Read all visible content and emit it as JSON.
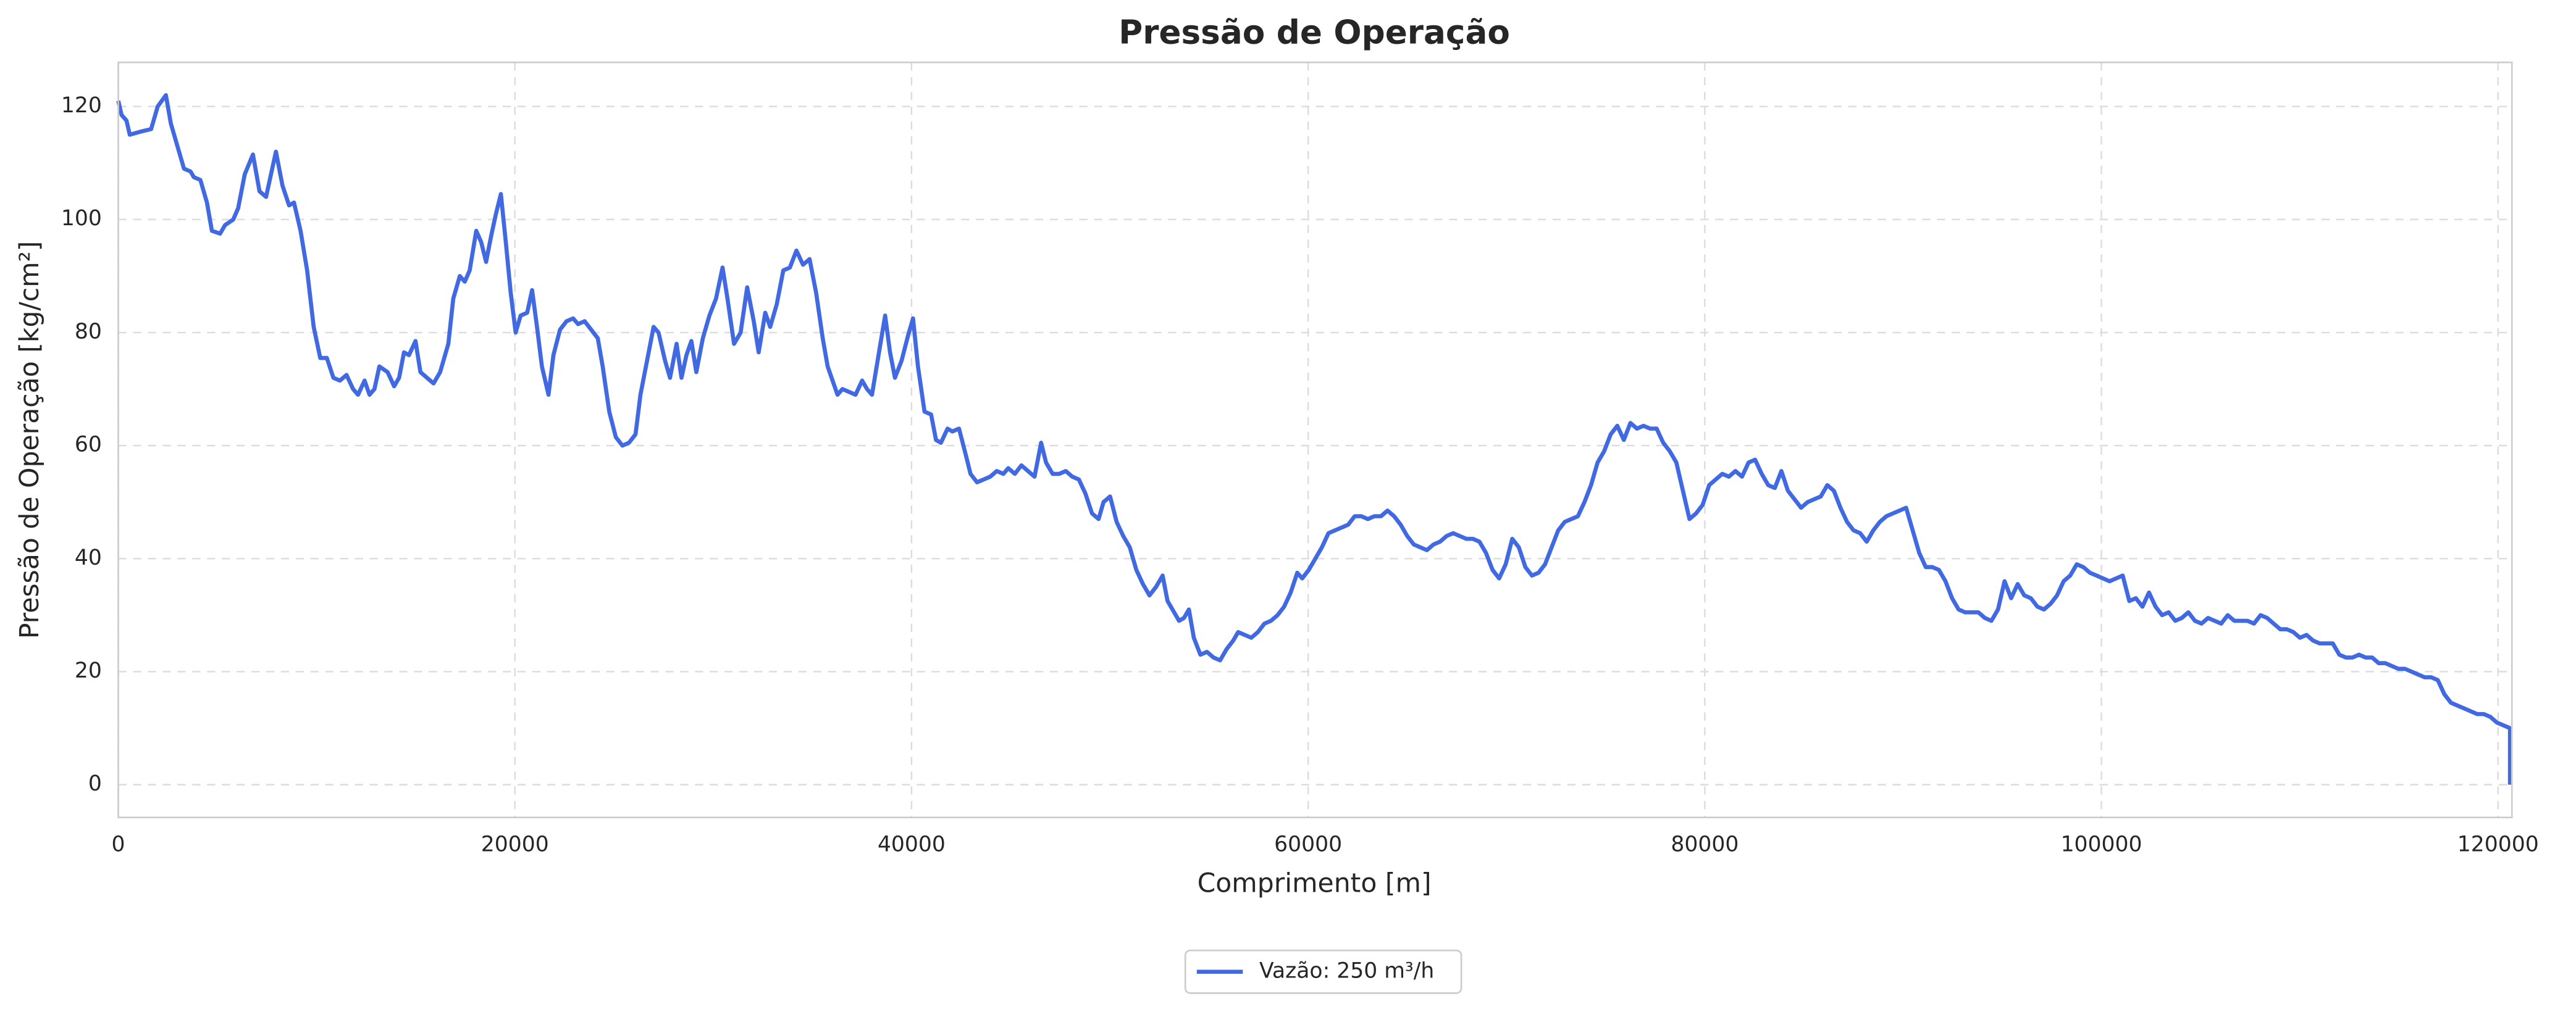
{
  "chart_data": {
    "type": "line",
    "title": "Pressão de Operação",
    "x_label": "Comprimento [m]",
    "y_label": "Pressão de Operação [kg/cm²]",
    "xlim": [
      0,
      120700
    ],
    "ylim": [
      -5.8,
      127.8
    ],
    "xticks": [
      0,
      20000,
      40000,
      60000,
      80000,
      100000,
      120000
    ],
    "yticks": [
      0,
      20,
      40,
      60,
      80,
      100,
      120
    ],
    "grid": true,
    "legend": "lower center",
    "x": [
      0,
      166,
      414,
      580,
      1076,
      1656,
      1987,
      2401,
      2650,
      2981,
      3312,
      3643,
      3809,
      4140,
      4471,
      4720,
      5134,
      5382,
      5796,
      6044,
      6376,
      6790,
      7121,
      7452,
      7700,
      7949,
      8280,
      8611,
      8860,
      9191,
      9522,
      9853,
      10184,
      10516,
      10847,
      11178,
      11509,
      11840,
      12089,
      12420,
      12668,
      12917,
      13165,
      13579,
      13910,
      14159,
      14407,
      14656,
      14987,
      15235,
      15566,
      15898,
      16229,
      16643,
      16891,
      17222,
      17471,
      17719,
      18050,
      18299,
      18547,
      18796,
      19044,
      19292,
      19541,
      19789,
      20038,
      20286,
      20617,
      20866,
      21114,
      21362,
      21694,
      21942,
      22273,
      22604,
      22936,
      23184,
      23515,
      23846,
      24178,
      24426,
      24757,
      25088,
      25420,
      25751,
      26082,
      26330,
      26662,
      26993,
      27241,
      27572,
      27821,
      28152,
      28400,
      28649,
      28897,
      29146,
      29477,
      29808,
      30139,
      30470,
      30719,
      31050,
      31381,
      31712,
      32044,
      32292,
      32623,
      32872,
      33203,
      33534,
      33865,
      34196,
      34528,
      34859,
      35190,
      35521,
      35770,
      36018,
      36266,
      36515,
      36846,
      37177,
      37508,
      37757,
      38005,
      38336,
      38668,
      38916,
      39164,
      39496,
      39827,
      40075,
      40324,
      40655,
      40986,
      41234,
      41483,
      41814,
      42062,
      42394,
      42725,
      42973,
      43304,
      43636,
      43967,
      44298,
      44629,
      44878,
      45209,
      45540,
      45871,
      46202,
      46534,
      46782,
      47113,
      47444,
      47776,
      48107,
      48438,
      48769,
      49100,
      49432,
      49680,
      50011,
      50342,
      50674,
      51005,
      51336,
      51667,
      51998,
      52330,
      52661,
      52909,
      53158,
      53489,
      53737,
      53986,
      54234,
      54565,
      54896,
      55228,
      55559,
      55890,
      56221,
      56470,
      56801,
      57132,
      57463,
      57794,
      58126,
      58457,
      58788,
      59119,
      59450,
      59699,
      60030,
      60361,
      60692,
      61023,
      61354,
      61685,
      62016,
      62347,
      62678,
      63009,
      63340,
      63671,
      64002,
      64333,
      64664,
      64995,
      65326,
      65657,
      65988,
      66319,
      66650,
      66981,
      67312,
      67643,
      67974,
      68305,
      68636,
      68967,
      69298,
      69629,
      69960,
      70291,
      70622,
      70953,
      71284,
      71615,
      71946,
      72277,
      72608,
      72939,
      73270,
      73601,
      73932,
      74263,
      74594,
      74925,
      75256,
      75587,
      75918,
      76249,
      76580,
      76911,
      77242,
      77573,
      77904,
      78235,
      78566,
      78897,
      79228,
      79559,
      79890,
      80221,
      80552,
      80883,
      81214,
      81545,
      81876,
      82207,
      82538,
      82869,
      83200,
      83531,
      83862,
      84193,
      84524,
      84855,
      85186,
      85517,
      85848,
      86179,
      86510,
      86841,
      87172,
      87503,
      87834,
      88165,
      88496,
      88827,
      89158,
      89489,
      89820,
      90151,
      90482,
      90813,
      91144,
      91475,
      91806,
      92137,
      92468,
      92799,
      93130,
      93461,
      93792,
      94123,
      94454,
      94785,
      95116,
      95447,
      95778,
      96109,
      96440,
      96771,
      97102,
      97433,
      97764,
      98095,
      98426,
      98757,
      99088,
      99419,
      99750,
      100081,
      100412,
      100743,
      101074,
      101405,
      101736,
      102067,
      102398,
      102729,
      103060,
      103391,
      103722,
      104053,
      104384,
      104715,
      105046,
      105377,
      105708,
      106039,
      106370,
      106701,
      107032,
      107363,
      107694,
      108025,
      108356,
      108687,
      109018,
      109349,
      109680,
      110011,
      110342,
      110673,
      111004,
      111335,
      111666,
      111997,
      112328,
      112659,
      112990,
      113321,
      113652,
      113983,
      114314,
      114645,
      114976,
      115307,
      115638,
      115969,
      116300,
      116631,
      116962,
      117293,
      117624,
      117955,
      118286,
      118617,
      118948,
      119279,
      119610,
      119941,
      120272,
      120603,
      120603
    ],
    "series": [
      {
        "name": "Vazão: 250 m³/h",
        "color": "#4169e1",
        "values": [
          121,
          118.5,
          117.5,
          115,
          115.5,
          116,
          120,
          122,
          117,
          113,
          109,
          108.5,
          107.5,
          107,
          103,
          98,
          97.5,
          99,
          100,
          102,
          108,
          111.5,
          105,
          104,
          108,
          112,
          106,
          102.5,
          103,
          98,
          91,
          81,
          75.5,
          75.5,
          72,
          71.5,
          72.5,
          70,
          69,
          71.5,
          69,
          70,
          74,
          73,
          70.5,
          72,
          76.5,
          76,
          78.5,
          73,
          72,
          71,
          73,
          78,
          86,
          90,
          89,
          91,
          98,
          96,
          92.5,
          97,
          101,
          104.5,
          96,
          87,
          80,
          83,
          83.5,
          87.5,
          81,
          74,
          69,
          76,
          80.5,
          82,
          82.5,
          81.5,
          82,
          80.5,
          79,
          74,
          66,
          61.5,
          60,
          60.5,
          62,
          69,
          75,
          81,
          80,
          75,
          72,
          78,
          72,
          76,
          78.5,
          73,
          79,
          83,
          86,
          91.5,
          86,
          78,
          80,
          88,
          82,
          76.5,
          83.5,
          81,
          85,
          91,
          91.5,
          94.5,
          92,
          93,
          87,
          79,
          74,
          71.5,
          69,
          70,
          69.5,
          69,
          71.5,
          70,
          69,
          76,
          83,
          76.5,
          72,
          75,
          79.5,
          82.5,
          74,
          66,
          65.5,
          61,
          60.5,
          63,
          62.5,
          63,
          58.5,
          55,
          53.5,
          54,
          54.5,
          55.5,
          55,
          56,
          55,
          56.5,
          55.5,
          54.5,
          60.5,
          57,
          55,
          55,
          55.5,
          54.5,
          54,
          51.5,
          48,
          47,
          50,
          51,
          46.5,
          44,
          42,
          38,
          35.5,
          33.5,
          35,
          37,
          32.5,
          31,
          29,
          29.5,
          31,
          26,
          23,
          23.5,
          22.5,
          22,
          24,
          25.5,
          27,
          26.5,
          26,
          27,
          28.5,
          29,
          30,
          31.5,
          34,
          37.5,
          36.5,
          38,
          40,
          42,
          44.5,
          45,
          45.5,
          46,
          47.5,
          47.5,
          47,
          47.5,
          47.5,
          48.5,
          47.5,
          46,
          44,
          42.5,
          42,
          41.5,
          42.5,
          43,
          44,
          44.5,
          44,
          43.5,
          43.5,
          43,
          41,
          38,
          36.5,
          39,
          43.5,
          42,
          38.5,
          37,
          37.5,
          39,
          42,
          45,
          46.5,
          47,
          47.5,
          50,
          53,
          57,
          59,
          62,
          63.5,
          61,
          64,
          63,
          63.5,
          63,
          63,
          60.5,
          59,
          57,
          52,
          47,
          48,
          49.5,
          53,
          54,
          55,
          54.5,
          55.5,
          54.5,
          57,
          57.5,
          55,
          53,
          52.5,
          55.5,
          52,
          50.5,
          49,
          50,
          50.5,
          51,
          53,
          52,
          49,
          46.5,
          45,
          44.5,
          43,
          45,
          46.5,
          47.5,
          48,
          48.5,
          49,
          45,
          41,
          38.5,
          38.5,
          38,
          36,
          33,
          31,
          30.5,
          30.5,
          30.5,
          29.5,
          29,
          31,
          36,
          33,
          35.5,
          33.5,
          33,
          31.5,
          31,
          32,
          33.5,
          36,
          37,
          39,
          38.5,
          37.5,
          37,
          36.5,
          36,
          36.5,
          37,
          32.5,
          33,
          31.5,
          34,
          31.5,
          30,
          30.5,
          29,
          29.5,
          30.5,
          29,
          28.5,
          29.5,
          29,
          28.5,
          30,
          29,
          29,
          29,
          28.5,
          30,
          29.5,
          28.5,
          27.5,
          27.5,
          27,
          26,
          26.5,
          25.5,
          25,
          25,
          25,
          23,
          22.5,
          22.5,
          23,
          22.5,
          22.5,
          21.5,
          21.5,
          21,
          20.5,
          20.5,
          20,
          19.5,
          19,
          19,
          18.5,
          16,
          14.5,
          14,
          13.5,
          13,
          12.5,
          12.5,
          12,
          11,
          10.5,
          10,
          0
        ]
      }
    ]
  }
}
